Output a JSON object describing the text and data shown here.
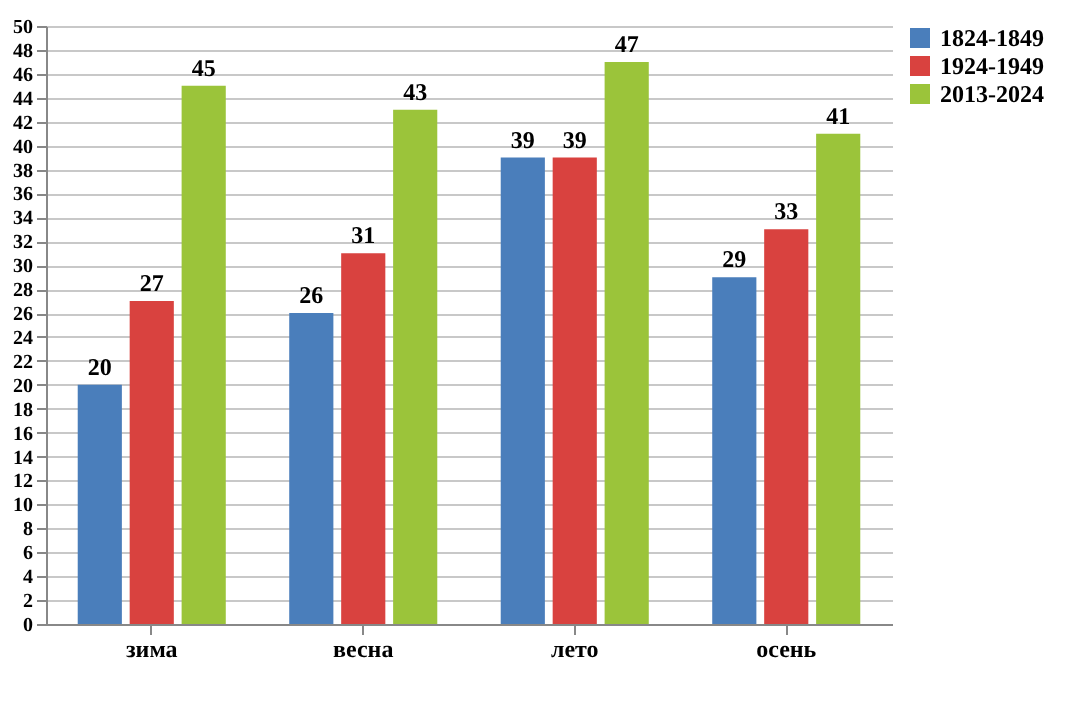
{
  "chart_data": {
    "type": "bar",
    "categories": [
      "зима",
      "весна",
      "лето",
      "осень"
    ],
    "series": [
      {
        "name": "1824-1849",
        "color": "#4a7ebb",
        "values": [
          20,
          26,
          39,
          29
        ]
      },
      {
        "name": "1924-1949",
        "color": "#d9423f",
        "values": [
          27,
          31,
          39,
          33
        ]
      },
      {
        "name": "2013-2024",
        "color": "#9bc43a",
        "values": [
          45,
          43,
          47,
          41
        ]
      }
    ],
    "ylim": [
      0,
      50
    ],
    "yticks": [
      0,
      2,
      4,
      6,
      8,
      10,
      12,
      14,
      16,
      18,
      20,
      22,
      24,
      26,
      28,
      30,
      32,
      34,
      36,
      38,
      40,
      42,
      44,
      46,
      48,
      50
    ],
    "grid": "y",
    "legend": "right",
    "data_labels": true
  }
}
